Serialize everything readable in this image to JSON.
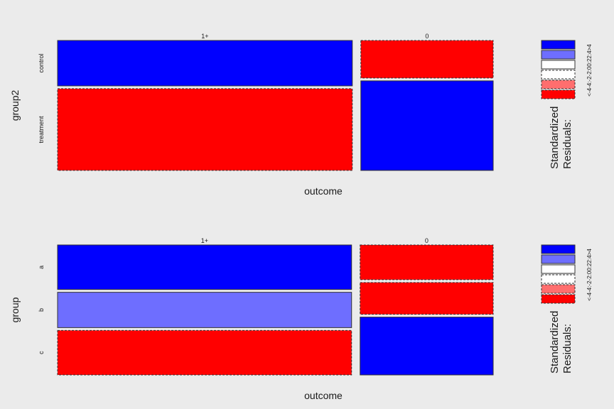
{
  "chart_data": [
    {
      "type": "mosaic",
      "xlabel": "outcome",
      "ylabel": "group2",
      "categories": [
        "1+",
        "0"
      ],
      "rows": [
        "control",
        "treatment"
      ],
      "values": [
        [
          35,
          13
        ],
        [
          63,
          31
        ]
      ],
      "residual_class": [
        [
          ">4",
          "<-4"
        ],
        [
          "<-4",
          ">4"
        ]
      ],
      "legend": {
        "title_line1": "Standardized",
        "title_line2": "Residuals:",
        "labels": "<-4-4:-2-2:00:22:4>4"
      }
    },
    {
      "type": "mosaic",
      "xlabel": "outcome",
      "ylabel": "group",
      "categories": [
        "1+",
        "0"
      ],
      "rows": [
        "a",
        "b",
        "c"
      ],
      "values": [
        [
          34,
          12
        ],
        [
          27,
          11
        ],
        [
          34,
          20
        ]
      ],
      "residual_class": [
        [
          ">4",
          "<-4"
        ],
        [
          "2:4",
          "<-4"
        ],
        [
          "<-4",
          ">4"
        ]
      ],
      "legend": {
        "title_line1": "Standardized",
        "title_line2": "Residuals:",
        "labels": "<-4-4:-2-2:00:22:4>4"
      }
    }
  ],
  "colors": {
    "background": "#ebebeb",
    "strong_positive": "#0000ff",
    "moderate_positive": "#6e6eff",
    "neutral": "#ffffff",
    "moderate_negative": "#ff6e6e",
    "strong_negative": "#ff0000"
  }
}
